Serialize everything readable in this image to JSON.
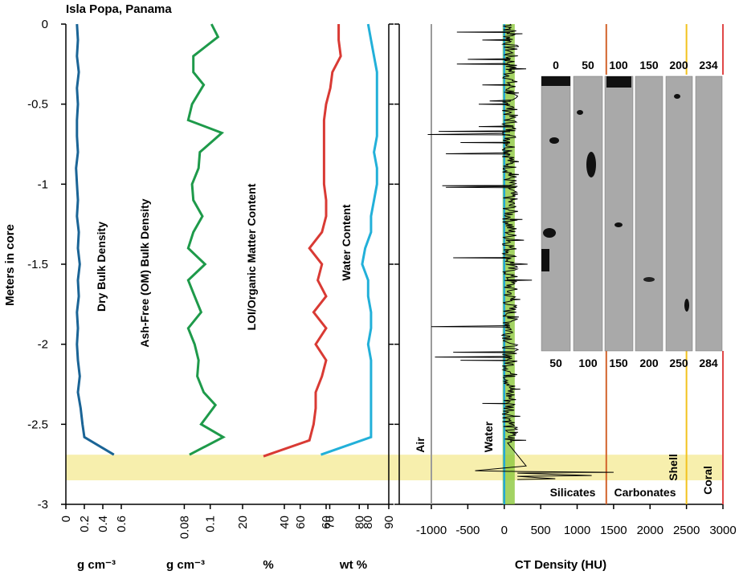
{
  "title": "Isla Popa, Panama",
  "y_axis": {
    "label": "Meters in core",
    "ticks": [
      "0",
      "-0.5",
      "-1",
      "-1.5",
      "-2",
      "-2.5",
      "-3"
    ],
    "range": [
      -3,
      0
    ]
  },
  "colors": {
    "dry_bulk": "#1a6496",
    "ash_free": "#1e9a4a",
    "loi": "#d93a34",
    "water_content": "#22b0d9",
    "ct": "#000000",
    "band": "#f7efad",
    "air_line": "#9b9b9b",
    "water_line": "#22a8d8",
    "green_band": "#8cc83c",
    "carbonate_line": "#d2622a",
    "shell_line": "#f2c21e",
    "coral_line": "#e04848"
  },
  "chart_data": [
    {
      "type": "line",
      "name": "Dry Bulk Density",
      "unit": "g cm⁻³",
      "ticks": [
        "0",
        "0.2",
        "0.4",
        "0.6"
      ],
      "xlim": [
        0,
        0.8
      ],
      "depth": [
        0,
        -0.1,
        -0.2,
        -0.3,
        -0.4,
        -0.5,
        -0.6,
        -0.7,
        -0.8,
        -0.9,
        -1.0,
        -1.1,
        -1.2,
        -1.3,
        -1.4,
        -1.5,
        -1.6,
        -1.7,
        -1.8,
        -1.9,
        -2.0,
        -2.1,
        -2.2,
        -2.3,
        -2.4,
        -2.5,
        -2.58,
        -2.69
      ],
      "values": [
        0.12,
        0.13,
        0.12,
        0.14,
        0.12,
        0.13,
        0.12,
        0.12,
        0.13,
        0.11,
        0.12,
        0.13,
        0.12,
        0.14,
        0.13,
        0.15,
        0.13,
        0.14,
        0.12,
        0.13,
        0.12,
        0.13,
        0.15,
        0.13,
        0.16,
        0.18,
        0.2,
        0.52
      ]
    },
    {
      "type": "line",
      "name": "Ash-Free (OM) Bulk Density",
      "unit": "g cm⁻³",
      "ticks": [
        "0.08",
        "0.1"
      ],
      "xlim": [
        0.05,
        0.12
      ],
      "depth": [
        0,
        -0.08,
        -0.2,
        -0.3,
        -0.38,
        -0.5,
        -0.6,
        -0.68,
        -0.8,
        -0.9,
        -1.0,
        -1.1,
        -1.2,
        -1.3,
        -1.4,
        -1.5,
        -1.6,
        -1.7,
        -1.8,
        -1.9,
        -2.0,
        -2.1,
        -2.2,
        -2.3,
        -2.38,
        -2.5,
        -2.58,
        -2.69
      ],
      "values": [
        0.101,
        0.106,
        0.087,
        0.087,
        0.095,
        0.086,
        0.083,
        0.109,
        0.092,
        0.091,
        0.086,
        0.087,
        0.094,
        0.087,
        0.083,
        0.096,
        0.083,
        0.088,
        0.093,
        0.083,
        0.088,
        0.091,
        0.09,
        0.095,
        0.104,
        0.093,
        0.11,
        0.084
      ]
    },
    {
      "type": "line",
      "name": "LOI/Organic Matter Content",
      "unit": "%",
      "ticks": [
        "20",
        "40",
        "60",
        "80"
      ],
      "xlim": [
        10,
        90
      ],
      "depth": [
        0,
        -0.1,
        -0.2,
        -0.3,
        -0.4,
        -0.5,
        -0.6,
        -0.7,
        -0.8,
        -0.9,
        -1.0,
        -1.1,
        -1.2,
        -1.3,
        -1.4,
        -1.5,
        -1.6,
        -1.7,
        -1.8,
        -1.9,
        -2.0,
        -2.1,
        -2.2,
        -2.3,
        -2.4,
        -2.5,
        -2.6,
        -2.7
      ],
      "values": [
        66,
        66,
        67,
        63,
        62,
        60,
        59,
        59,
        59,
        59,
        59,
        60,
        60,
        58,
        52,
        58,
        56,
        60,
        54,
        60,
        55,
        60,
        58,
        55,
        55,
        54,
        52,
        30
      ]
    },
    {
      "type": "line",
      "name": "Water Content",
      "unit": "wt %",
      "ticks": [
        "60",
        "70",
        "80",
        "90"
      ],
      "xlim": [
        50,
        90
      ],
      "depth": [
        0,
        -0.1,
        -0.2,
        -0.3,
        -0.4,
        -0.5,
        -0.6,
        -0.7,
        -0.8,
        -0.9,
        -1.0,
        -1.1,
        -1.2,
        -1.3,
        -1.4,
        -1.5,
        -1.6,
        -1.7,
        -1.8,
        -1.9,
        -2.0,
        -2.1,
        -2.2,
        -2.3,
        -2.4,
        -2.5,
        -2.58,
        -2.69
      ],
      "values": [
        83,
        84,
        85,
        86,
        86,
        86,
        86,
        86,
        85,
        86,
        86,
        85,
        84,
        84,
        82,
        81,
        83,
        83,
        84,
        84,
        83,
        84,
        84,
        84,
        84,
        84,
        84,
        67
      ]
    },
    {
      "type": "line",
      "name": "CT Density",
      "xlabel": "CT Density (HU)",
      "ticks": [
        "-1000",
        "-500",
        "0",
        "500",
        "1000",
        "1500",
        "2000",
        "2500",
        "3000"
      ],
      "xlim": [
        -1000,
        3000
      ],
      "baseline": 80,
      "baseline_depth": 2.62,
      "spikes": [
        [
          0.02,
          100
        ],
        [
          0.05,
          -650
        ],
        [
          0.06,
          250
        ],
        [
          0.1,
          -300
        ],
        [
          0.14,
          200
        ],
        [
          0.22,
          -500
        ],
        [
          0.25,
          -650
        ],
        [
          0.28,
          300
        ],
        [
          0.38,
          -300
        ],
        [
          0.43,
          200
        ],
        [
          0.48,
          -200
        ],
        [
          0.5,
          -350
        ],
        [
          0.64,
          -350
        ],
        [
          0.67,
          -900
        ],
        [
          0.69,
          -1050
        ],
        [
          0.74,
          -600
        ],
        [
          0.81,
          -800
        ],
        [
          0.86,
          200
        ],
        [
          0.94,
          200
        ],
        [
          1.01,
          -850
        ],
        [
          1.02,
          -800
        ],
        [
          1.22,
          250
        ],
        [
          1.35,
          270
        ],
        [
          1.46,
          -700
        ],
        [
          1.5,
          320
        ],
        [
          1.6,
          380
        ],
        [
          1.72,
          220
        ],
        [
          1.83,
          200
        ],
        [
          1.89,
          -1000
        ],
        [
          2.05,
          -700
        ],
        [
          2.08,
          -950
        ],
        [
          2.1,
          -600
        ],
        [
          2.2,
          150
        ],
        [
          2.28,
          220
        ],
        [
          2.37,
          -300
        ],
        [
          2.45,
          220
        ],
        [
          2.55,
          190
        ],
        [
          2.6,
          300
        ],
        [
          2.76,
          300
        ],
        [
          2.79,
          -400
        ],
        [
          2.8,
          1500
        ],
        [
          2.82,
          1200
        ],
        [
          2.84,
          700
        ]
      ],
      "annotations": [
        "Air",
        "Water",
        "Silicates",
        "Carbonates",
        "Shell",
        "Coral"
      ],
      "reference_lines": {
        "air": -1000,
        "water": 0,
        "carbonates": 1400,
        "shell": 2500,
        "coral": 3000
      }
    }
  ],
  "band": {
    "depth_top": -2.69,
    "depth_bottom": -2.85
  },
  "core_images": {
    "top_labels": [
      "0",
      "50",
      "100",
      "150",
      "200",
      "234"
    ],
    "bottom_labels": [
      "50",
      "100",
      "150",
      "200",
      "250",
      "284"
    ]
  }
}
